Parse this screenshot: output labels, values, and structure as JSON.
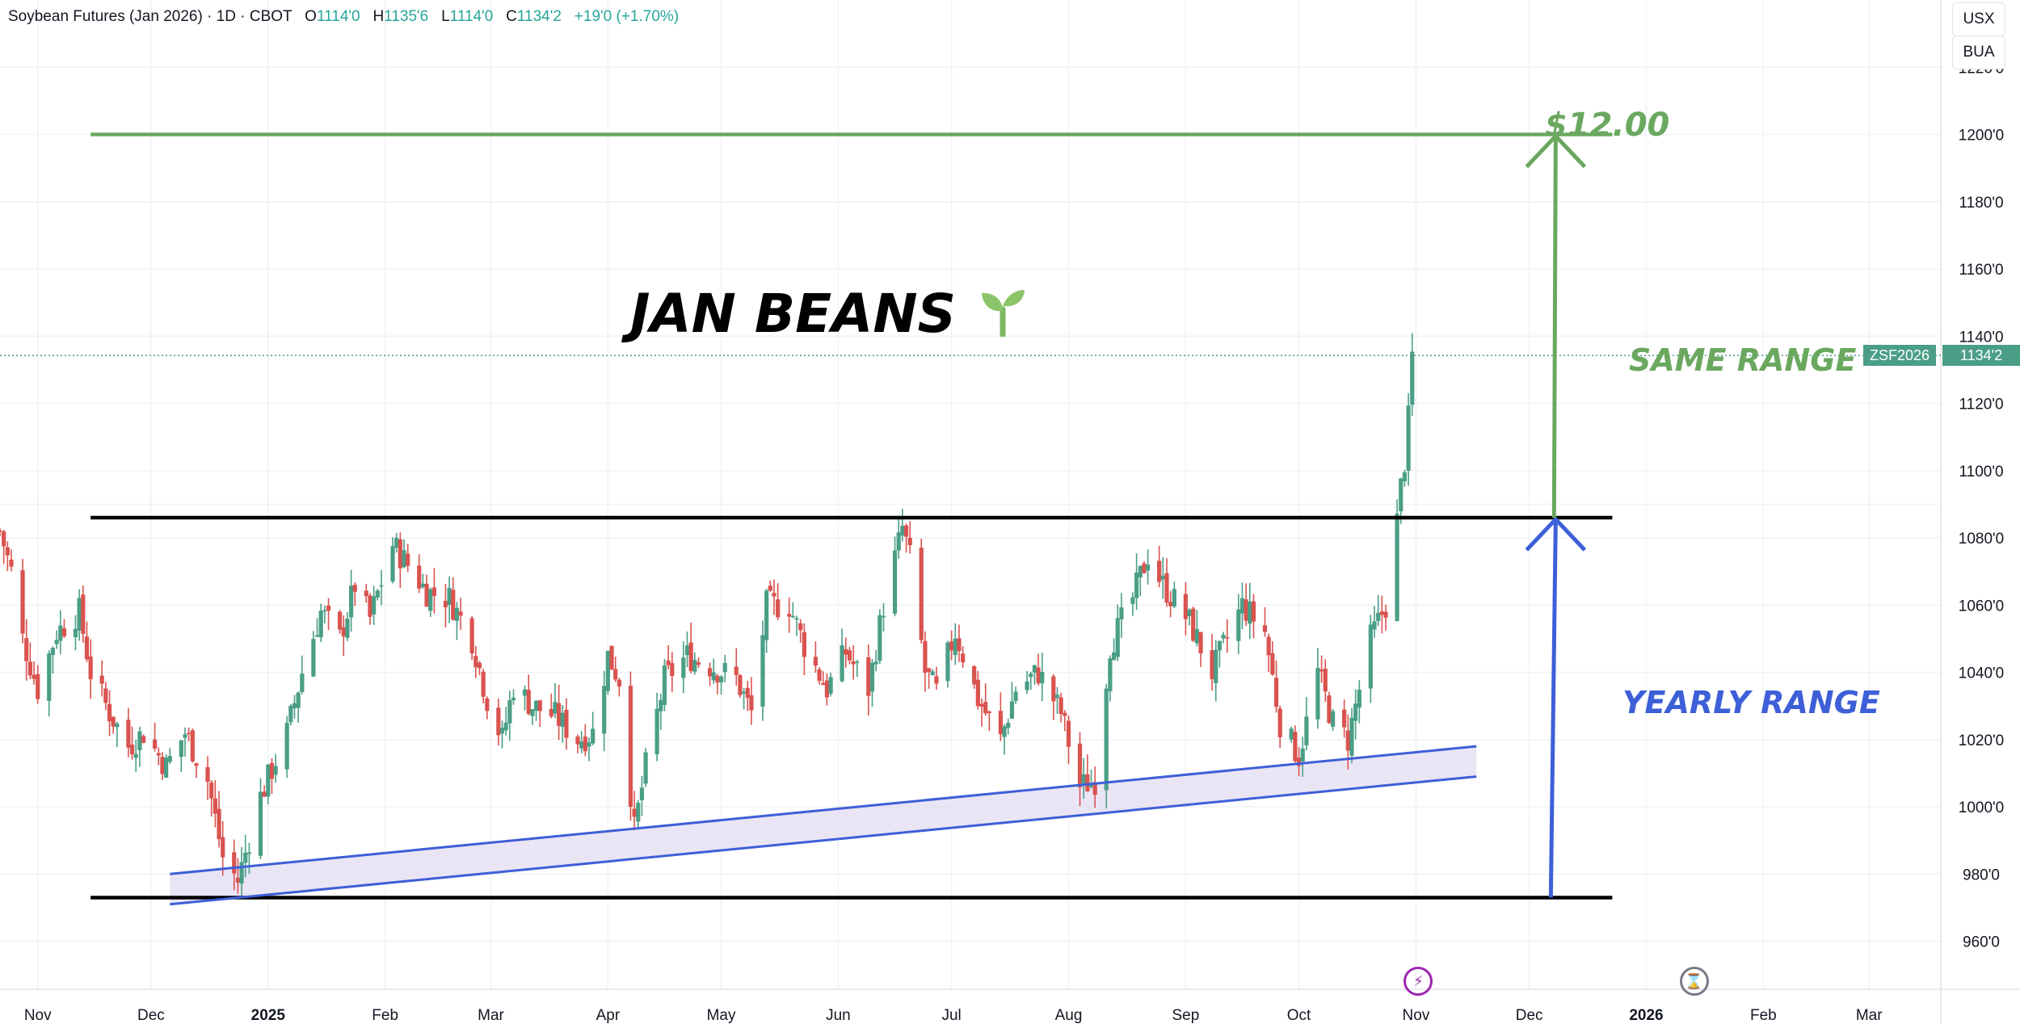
{
  "header": {
    "symbol": "Soybean Futures (Jan 2026) · 1D · CBOT",
    "o_label": "O",
    "o_value": "1114'0",
    "h_label": "H",
    "h_value": "1135'6",
    "l_label": "L",
    "l_value": "1114'0",
    "c_label": "C",
    "c_value": "1134'2",
    "change": "+19'0 (+1.70%)"
  },
  "currency": {
    "top": "USX",
    "bottom": "BUA"
  },
  "last_price": {
    "symbol": "ZSF2026",
    "value": "1134'2",
    "price": 1134.25
  },
  "annotations": {
    "title": "JAN BEANS",
    "title_icon": "seedling-icon",
    "target": "$12.00",
    "same_range": "SAME RANGE",
    "yearly_range": "YEARLY RANGE"
  },
  "colors": {
    "up": "#4a9e86",
    "down": "#d9534f",
    "green": "#6aa85f",
    "blue": "#3d5fd8",
    "black": "#000000",
    "channel_fill": "#e6e1f3",
    "tag": "#4a9e86"
  },
  "chart_data": {
    "type": "candlestick",
    "y_unit": "cents per bushel",
    "ylim": [
      945,
      1240
    ],
    "y_ticks": [
      960,
      980,
      1000,
      1020,
      1040,
      1060,
      1080,
      1100,
      1120,
      1140,
      1160,
      1180,
      1200,
      1220
    ],
    "y_tick_labels": [
      "960'0",
      "980'0",
      "1000'0",
      "1020'0",
      "1040'0",
      "1060'0",
      "1080'0",
      "1100'0",
      "1120'0",
      "1140'0",
      "1160'0",
      "1180'0",
      "1200'0",
      "1220'0"
    ],
    "x_range": [
      "2024-10-22",
      "2026-03-20"
    ],
    "x_ticks": [
      {
        "date": "2024-11-01",
        "label": "Nov",
        "bold": false
      },
      {
        "date": "2024-12-01",
        "label": "Dec",
        "bold": false
      },
      {
        "date": "2025-01-01",
        "label": "2025",
        "bold": true
      },
      {
        "date": "2025-02-01",
        "label": "Feb",
        "bold": false
      },
      {
        "date": "2025-03-01",
        "label": "Mar",
        "bold": false
      },
      {
        "date": "2025-04-01",
        "label": "Apr",
        "bold": false
      },
      {
        "date": "2025-05-01",
        "label": "May",
        "bold": false
      },
      {
        "date": "2025-06-01",
        "label": "Jun",
        "bold": false
      },
      {
        "date": "2025-07-01",
        "label": "Jul",
        "bold": false
      },
      {
        "date": "2025-08-01",
        "label": "Aug",
        "bold": false
      },
      {
        "date": "2025-09-01",
        "label": "Sep",
        "bold": false
      },
      {
        "date": "2025-10-01",
        "label": "Oct",
        "bold": false
      },
      {
        "date": "2025-11-01",
        "label": "Nov",
        "bold": false
      },
      {
        "date": "2025-12-01",
        "label": "Dec",
        "bold": false
      },
      {
        "date": "2026-01-01",
        "label": "2026",
        "bold": true
      },
      {
        "date": "2026-02-01",
        "label": "Feb",
        "bold": false
      },
      {
        "date": "2026-03-01",
        "label": "Mar",
        "bold": false
      }
    ],
    "close_path": [
      [
        "2024-10-22",
        1082
      ],
      [
        "2024-10-25",
        1070
      ],
      [
        "2024-10-28",
        1050
      ],
      [
        "2024-11-01",
        1035
      ],
      [
        "2024-11-06",
        1052
      ],
      [
        "2024-11-12",
        1058
      ],
      [
        "2024-11-15",
        1040
      ],
      [
        "2024-11-20",
        1028
      ],
      [
        "2024-11-25",
        1018
      ],
      [
        "2024-11-29",
        1022
      ],
      [
        "2024-12-05",
        1012
      ],
      [
        "2024-12-10",
        1022
      ],
      [
        "2024-12-16",
        1008
      ],
      [
        "2024-12-20",
        985
      ],
      [
        "2024-12-24",
        978
      ],
      [
        "2024-12-30",
        1003
      ],
      [
        "2025-01-06",
        1022
      ],
      [
        "2025-01-10",
        1040
      ],
      [
        "2025-01-15",
        1058
      ],
      [
        "2025-01-20",
        1050
      ],
      [
        "2025-01-24",
        1066
      ],
      [
        "2025-01-28",
        1056
      ],
      [
        "2025-02-03",
        1078
      ],
      [
        "2025-02-07",
        1072
      ],
      [
        "2025-02-12",
        1064
      ],
      [
        "2025-02-18",
        1062
      ],
      [
        "2025-02-24",
        1050
      ],
      [
        "2025-02-28",
        1032
      ],
      [
        "2025-03-04",
        1020
      ],
      [
        "2025-03-07",
        1036
      ],
      [
        "2025-03-12",
        1030
      ],
      [
        "2025-03-18",
        1027
      ],
      [
        "2025-03-24",
        1020
      ],
      [
        "2025-03-28",
        1022
      ],
      [
        "2025-04-01",
        1045
      ],
      [
        "2025-04-04",
        1038
      ],
      [
        "2025-04-08",
        993
      ],
      [
        "2025-04-11",
        1012
      ],
      [
        "2025-04-16",
        1038
      ],
      [
        "2025-04-22",
        1045
      ],
      [
        "2025-04-28",
        1042
      ],
      [
        "2025-05-05",
        1038
      ],
      [
        "2025-05-09",
        1028
      ],
      [
        "2025-05-13",
        1060
      ],
      [
        "2025-05-19",
        1060
      ],
      [
        "2025-05-23",
        1048
      ],
      [
        "2025-05-29",
        1035
      ],
      [
        "2025-06-03",
        1046
      ],
      [
        "2025-06-09",
        1035
      ],
      [
        "2025-06-13",
        1060
      ],
      [
        "2025-06-18",
        1083
      ],
      [
        "2025-06-20",
        1074
      ],
      [
        "2025-06-24",
        1040
      ],
      [
        "2025-06-27",
        1034
      ],
      [
        "2025-07-02",
        1052
      ],
      [
        "2025-07-08",
        1032
      ],
      [
        "2025-07-14",
        1020
      ],
      [
        "2025-07-18",
        1035
      ],
      [
        "2025-07-24",
        1040
      ],
      [
        "2025-07-30",
        1028
      ],
      [
        "2025-08-04",
        1006
      ],
      [
        "2025-08-08",
        1008
      ],
      [
        "2025-08-12",
        1048
      ],
      [
        "2025-08-18",
        1062
      ],
      [
        "2025-08-22",
        1075
      ],
      [
        "2025-08-26",
        1066
      ],
      [
        "2025-09-02",
        1055
      ],
      [
        "2025-09-08",
        1040
      ],
      [
        "2025-09-12",
        1050
      ],
      [
        "2025-09-16",
        1060
      ],
      [
        "2025-09-22",
        1052
      ],
      [
        "2025-09-26",
        1025
      ],
      [
        "2025-10-01",
        1015
      ],
      [
        "2025-10-06",
        1040
      ],
      [
        "2025-10-10",
        1025
      ],
      [
        "2025-10-14",
        1020
      ],
      [
        "2025-10-17",
        1035
      ],
      [
        "2025-10-20",
        1050
      ],
      [
        "2025-10-22",
        1055
      ],
      [
        "2025-10-24",
        1060
      ],
      [
        "2025-10-27",
        1085
      ],
      [
        "2025-10-28",
        1095
      ],
      [
        "2025-10-29",
        1103
      ],
      [
        "2025-10-30",
        1115
      ],
      [
        "2025-10-31",
        1134
      ]
    ],
    "lines": [
      {
        "name": "resistance",
        "from": [
          "2024-11-15",
          1086
        ],
        "to": [
          "2025-12-23",
          1086
        ],
        "color": "black"
      },
      {
        "name": "support",
        "from": [
          "2024-11-15",
          973
        ],
        "to": [
          "2025-12-23",
          973
        ],
        "color": "black"
      },
      {
        "name": "target",
        "from": [
          "2024-11-15",
          1200
        ],
        "to": [
          "2025-12-23",
          1200
        ],
        "color": "green"
      },
      {
        "name": "channel-upper",
        "from": [
          "2024-12-06",
          980
        ],
        "to": [
          "2025-11-17",
          1018
        ],
        "color": "blue"
      },
      {
        "name": "channel-lower",
        "from": [
          "2024-12-06",
          971
        ],
        "to": [
          "2025-11-17",
          1009
        ],
        "color": "blue"
      }
    ],
    "arrows": [
      {
        "name": "yearly-range-arrow",
        "x": "2025-12-08",
        "from": 973,
        "to": 1086,
        "color": "blue"
      },
      {
        "name": "same-range-arrow",
        "x": "2025-12-08",
        "from": 1086,
        "to": 1200,
        "color": "green"
      }
    ],
    "events": [
      {
        "name": "event-bolt-icon",
        "date": "2025-11-01",
        "glyph": "⚡"
      },
      {
        "name": "event-hourglass-icon",
        "date": "2026-01-13",
        "glyph": "⌛"
      }
    ]
  }
}
